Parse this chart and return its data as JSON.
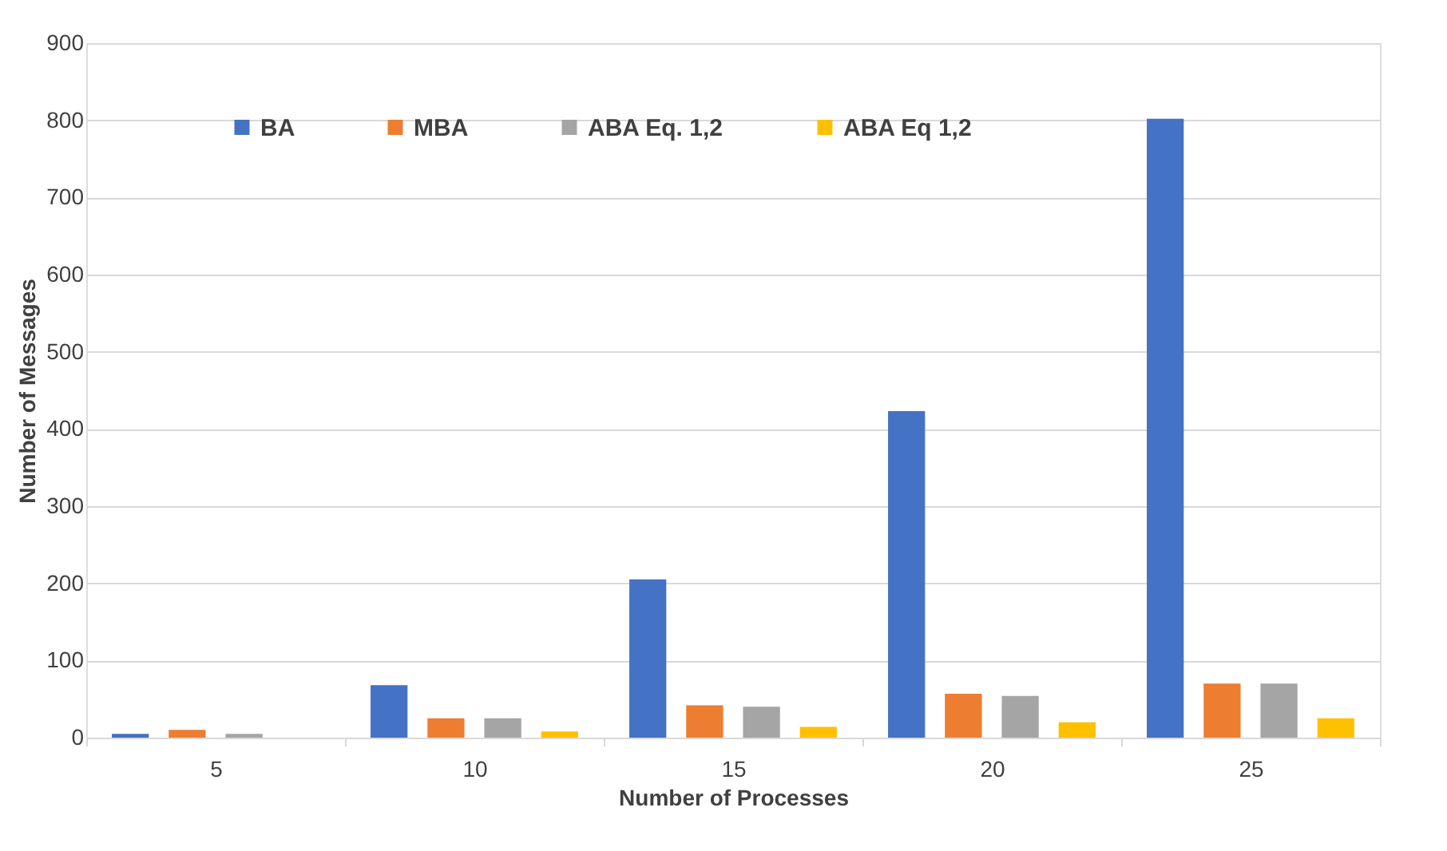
{
  "chart_data": {
    "type": "bar",
    "xlabel": "Number of Processes",
    "ylabel": "Number of Messages",
    "categories": [
      "5",
      "10",
      "15",
      "20",
      "25"
    ],
    "series": [
      {
        "name": "BA",
        "color": "#4472c4",
        "values": [
          5,
          68,
          205,
          423,
          802
        ]
      },
      {
        "name": "MBA",
        "color": "#ed7d31",
        "values": [
          10,
          25,
          42,
          57,
          70
        ]
      },
      {
        "name": "ABA Eq. 1,2",
        "color": "#a5a5a5",
        "values": [
          5,
          25,
          40,
          54,
          70
        ]
      },
      {
        "name": "ABA Eq 1,2",
        "color": "#ffc000",
        "values": [
          0,
          8,
          14,
          20,
          25
        ]
      }
    ],
    "ylim": [
      0,
      900
    ],
    "yticks": [
      0,
      100,
      200,
      300,
      400,
      500,
      600,
      700,
      800,
      900
    ],
    "grid": "y",
    "legend": "top left"
  }
}
